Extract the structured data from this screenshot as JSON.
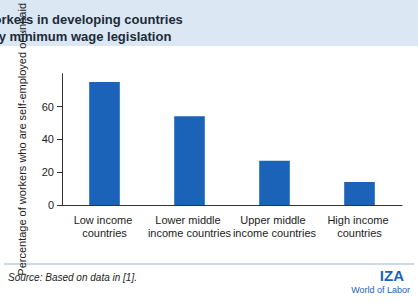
{
  "chart_data": {
    "type": "bar",
    "title": "More than half of workers in developing countries are not covered by minimum wage legislation",
    "y_label": "Percentage of workers who are self-employed or unpaid",
    "categories": [
      "Low income countries",
      "Lower middle income countries",
      "Upper middle income countries",
      "High income countries"
    ],
    "values": [
      75,
      54,
      27,
      14
    ],
    "color": "#1a63b8",
    "ylim": [
      0,
      80
    ],
    "yticks": [
      0,
      20,
      40,
      60
    ],
    "grid": false,
    "source": "Source: Based on data in [1].",
    "annotations": [
      "IZA",
      "World of Labor"
    ]
  }
}
